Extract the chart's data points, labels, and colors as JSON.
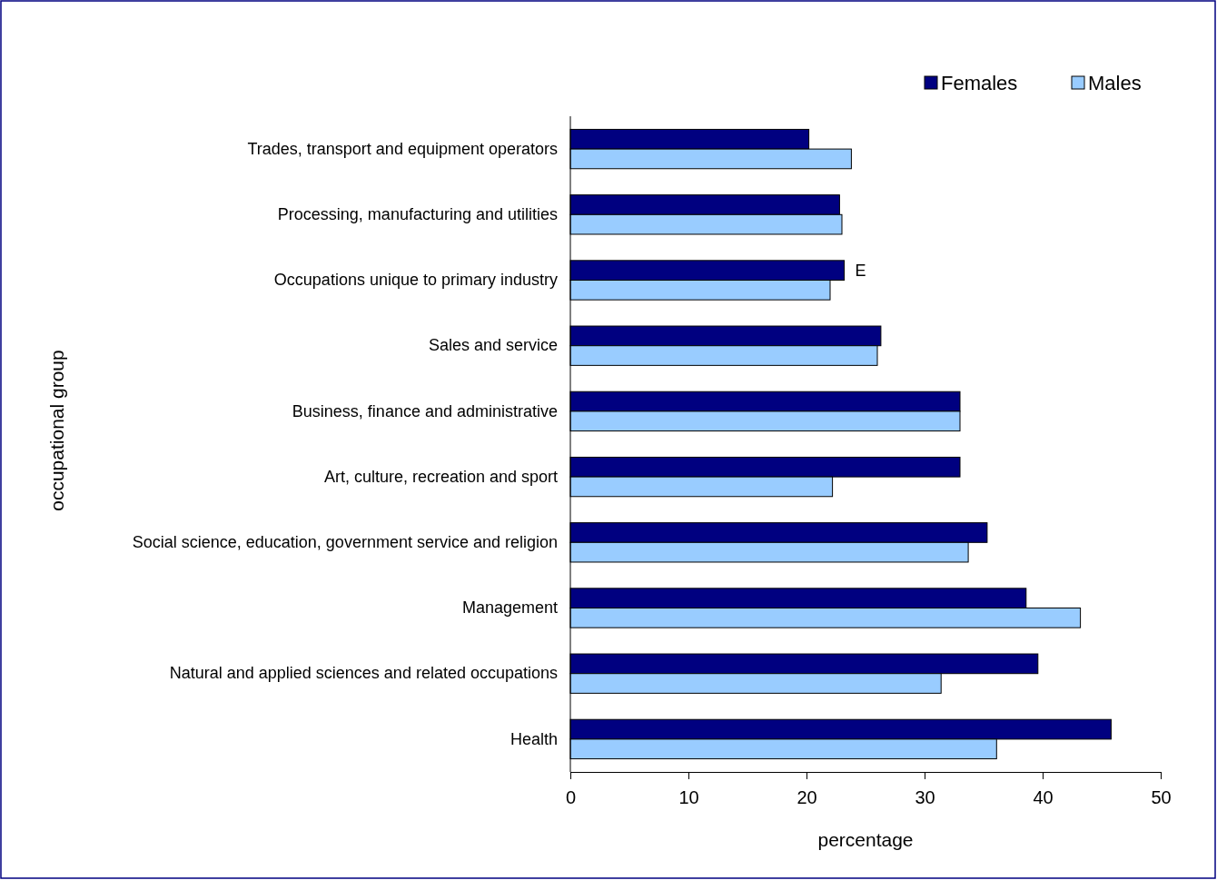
{
  "chart_data": {
    "type": "bar",
    "orientation": "horizontal",
    "xlabel": "percentage",
    "ylabel": "occupational group",
    "categories": [
      "Trades, transport and equipment operators",
      "Processing, manufacturing and utilities",
      "Occupations unique to primary industry",
      "Sales and service",
      "Business, finance and administrative",
      "Art, culture, recreation and sport",
      "Social science, education, government service and religion",
      "Management",
      "Natural and applied sciences and related occupations",
      "Health"
    ],
    "series": [
      {
        "name": "Females",
        "color": "#000080",
        "values": [
          20.2,
          22.8,
          23.2,
          26.3,
          33.0,
          33.0,
          35.3,
          38.6,
          39.6,
          45.8
        ]
      },
      {
        "name": "Males",
        "color": "#99ccff",
        "values": [
          23.8,
          23.0,
          22.0,
          26.0,
          33.0,
          22.2,
          33.7,
          43.2,
          31.4,
          36.1
        ]
      }
    ],
    "xlim": [
      0,
      50
    ],
    "xticks": [
      0,
      10,
      20,
      30,
      40,
      50
    ],
    "grid": false,
    "legend": "top right",
    "annotations": [
      {
        "text": "E",
        "x": 23.2,
        "y": "Occupations unique to primary industry"
      }
    ]
  }
}
